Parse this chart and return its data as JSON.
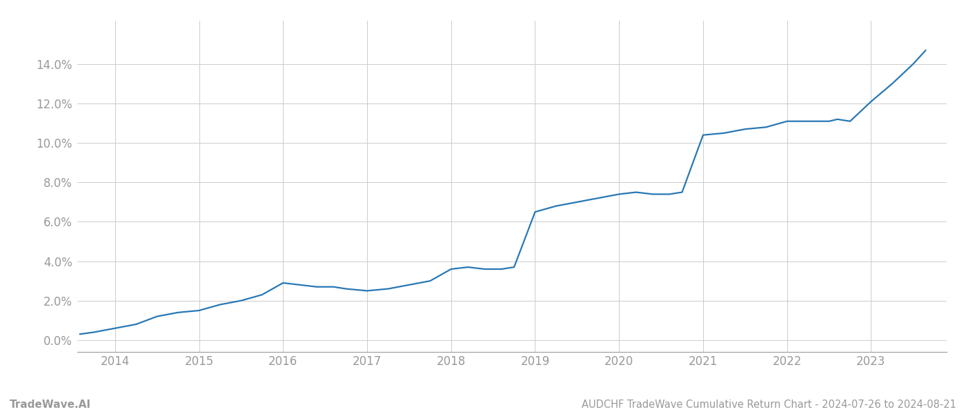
{
  "title": "AUDCHF TradeWave Cumulative Return Chart - 2024-07-26 to 2024-08-21",
  "watermark": "TradeWave.AI",
  "line_color": "#2777b4",
  "background_color": "#ffffff",
  "grid_color": "#cccccc",
  "x_years": [
    2014,
    2015,
    2016,
    2017,
    2018,
    2019,
    2020,
    2021,
    2022,
    2023
  ],
  "x_values": [
    2013.58,
    2013.75,
    2014.0,
    2014.25,
    2014.5,
    2014.75,
    2015.0,
    2015.25,
    2015.5,
    2015.75,
    2016.0,
    2016.2,
    2016.4,
    2016.6,
    2016.75,
    2017.0,
    2017.25,
    2017.5,
    2017.75,
    2018.0,
    2018.2,
    2018.4,
    2018.6,
    2018.75,
    2019.0,
    2019.25,
    2019.5,
    2019.75,
    2020.0,
    2020.2,
    2020.4,
    2020.6,
    2020.75,
    2021.0,
    2021.25,
    2021.5,
    2021.75,
    2022.0,
    2022.25,
    2022.5,
    2022.6,
    2022.75,
    2023.0,
    2023.25,
    2023.5,
    2023.65
  ],
  "y_values": [
    0.003,
    0.004,
    0.006,
    0.008,
    0.012,
    0.014,
    0.015,
    0.018,
    0.02,
    0.023,
    0.029,
    0.028,
    0.027,
    0.027,
    0.026,
    0.025,
    0.026,
    0.028,
    0.03,
    0.036,
    0.037,
    0.036,
    0.036,
    0.037,
    0.065,
    0.068,
    0.07,
    0.072,
    0.074,
    0.075,
    0.074,
    0.074,
    0.075,
    0.104,
    0.105,
    0.107,
    0.108,
    0.111,
    0.111,
    0.111,
    0.112,
    0.111,
    0.121,
    0.13,
    0.14,
    0.147
  ],
  "ylim": [
    -0.006,
    0.162
  ],
  "yticks": [
    0.0,
    0.02,
    0.04,
    0.06,
    0.08,
    0.1,
    0.12,
    0.14
  ],
  "xlim": [
    2013.55,
    2023.9
  ],
  "line_width": 1.6,
  "title_fontsize": 10.5,
  "tick_fontsize": 12,
  "watermark_fontsize": 11,
  "axis_color": "#999999",
  "tick_color": "#999999",
  "spine_color": "#999999"
}
